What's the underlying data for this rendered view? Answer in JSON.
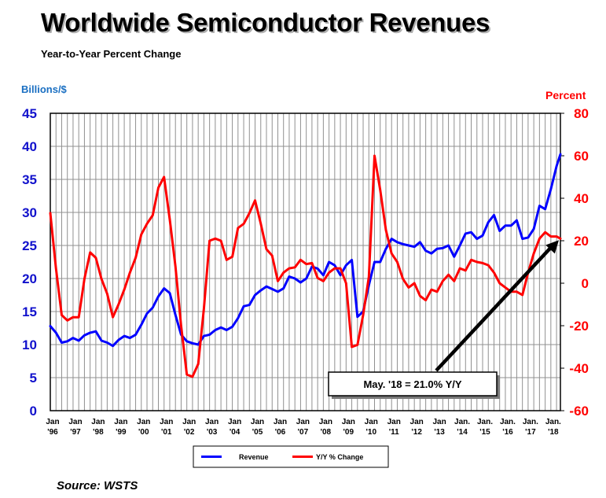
{
  "chart_data": {
    "type": "line",
    "title": "Worldwide Semiconductor Revenues",
    "subtitle": "Year-to-Year Percent Change",
    "ylabel_left": "Billions/$",
    "ylabel_right": "Percent",
    "ylim_left": [
      0,
      45
    ],
    "ylim_right": [
      -60,
      80
    ],
    "yticks_left": [
      "0",
      "5",
      "10",
      "15",
      "20",
      "25",
      "30",
      "35",
      "40",
      "45"
    ],
    "yticks_right": [
      "-60",
      "-40",
      "-20",
      "0",
      "20",
      "40",
      "60",
      "80"
    ],
    "xlim": [
      1996.0,
      2018.42
    ],
    "xticks": [
      {
        "year": 1996,
        "month": "Jan",
        "label": "'96"
      },
      {
        "year": 1997,
        "month": "Jan",
        "label": "'97"
      },
      {
        "year": 1998,
        "month": "Jan",
        "label": "'98"
      },
      {
        "year": 1999,
        "month": "Jan",
        "label": "'99"
      },
      {
        "year": 2000,
        "month": "Jan",
        "label": "'00"
      },
      {
        "year": 2001,
        "month": "Jan",
        "label": "'01"
      },
      {
        "year": 2002,
        "month": "Jan",
        "label": "'02"
      },
      {
        "year": 2003,
        "month": "Jan",
        "label": "'03"
      },
      {
        "year": 2004,
        "month": "Jan",
        "label": "'04"
      },
      {
        "year": 2005,
        "month": "Jan",
        "label": "'05"
      },
      {
        "year": 2006,
        "month": "Jan",
        "label": "'06"
      },
      {
        "year": 2007,
        "month": "Jan",
        "label": "'07"
      },
      {
        "year": 2008,
        "month": "Jan",
        "label": "'08"
      },
      {
        "year": 2009,
        "month": "Jan",
        "label": "'09"
      },
      {
        "year": 2010,
        "month": "Jan",
        "label": "'10"
      },
      {
        "year": 2011,
        "month": "Jan",
        "label": "'11"
      },
      {
        "year": 2012,
        "month": "Jan",
        "label": "'12"
      },
      {
        "year": 2013,
        "month": "Jan",
        "label": "'13"
      },
      {
        "year": 2014,
        "month": "Jan.",
        "label": "'14"
      },
      {
        "year": 2015,
        "month": "Jan.",
        "label": "'15"
      },
      {
        "year": 2016,
        "month": "Jan.",
        "label": "'16"
      },
      {
        "year": 2017,
        "month": "Jan.",
        "label": "'17"
      },
      {
        "year": 2018,
        "month": "Jan.",
        "label": "'18"
      }
    ],
    "grid": true,
    "legend_position": "bottom-center",
    "series": [
      {
        "name": "Revenue",
        "axis": "left",
        "color": "#0000ff",
        "points": [
          [
            1996.0,
            12.8
          ],
          [
            1996.25,
            11.8
          ],
          [
            1996.5,
            10.3
          ],
          [
            1996.75,
            10.5
          ],
          [
            1997.0,
            11.0
          ],
          [
            1997.25,
            10.6
          ],
          [
            1997.5,
            11.4
          ],
          [
            1997.75,
            11.8
          ],
          [
            1998.0,
            12.0
          ],
          [
            1998.25,
            10.6
          ],
          [
            1998.5,
            10.3
          ],
          [
            1998.75,
            9.8
          ],
          [
            1999.0,
            10.7
          ],
          [
            1999.25,
            11.3
          ],
          [
            1999.5,
            11.0
          ],
          [
            1999.75,
            11.5
          ],
          [
            2000.0,
            13.0
          ],
          [
            2000.25,
            14.7
          ],
          [
            2000.5,
            15.6
          ],
          [
            2000.75,
            17.3
          ],
          [
            2001.0,
            18.5
          ],
          [
            2001.25,
            17.8
          ],
          [
            2001.5,
            14.5
          ],
          [
            2001.75,
            11.5
          ],
          [
            2002.0,
            10.5
          ],
          [
            2002.25,
            10.2
          ],
          [
            2002.5,
            10.0
          ],
          [
            2002.75,
            11.3
          ],
          [
            2003.0,
            11.5
          ],
          [
            2003.25,
            12.2
          ],
          [
            2003.5,
            12.6
          ],
          [
            2003.75,
            12.2
          ],
          [
            2004.0,
            12.7
          ],
          [
            2004.25,
            14.0
          ],
          [
            2004.5,
            15.8
          ],
          [
            2004.75,
            16.0
          ],
          [
            2005.0,
            17.5
          ],
          [
            2005.25,
            18.2
          ],
          [
            2005.5,
            18.8
          ],
          [
            2005.75,
            18.4
          ],
          [
            2006.0,
            18.0
          ],
          [
            2006.25,
            18.5
          ],
          [
            2006.5,
            20.3
          ],
          [
            2006.75,
            20.0
          ],
          [
            2007.0,
            19.4
          ],
          [
            2007.25,
            20.0
          ],
          [
            2007.5,
            21.8
          ],
          [
            2007.75,
            21.5
          ],
          [
            2008.0,
            20.5
          ],
          [
            2008.25,
            22.5
          ],
          [
            2008.5,
            22.0
          ],
          [
            2008.75,
            20.5
          ],
          [
            2009.0,
            22.0
          ],
          [
            2009.25,
            22.8
          ],
          [
            2009.5,
            14.2
          ],
          [
            2009.75,
            15.0
          ],
          [
            2010.0,
            19.0
          ],
          [
            2010.25,
            22.5
          ],
          [
            2010.5,
            22.5
          ],
          [
            2010.75,
            24.5
          ],
          [
            2011.0,
            26.0
          ],
          [
            2011.25,
            25.5
          ],
          [
            2011.5,
            25.2
          ],
          [
            2011.75,
            25.0
          ],
          [
            2012.0,
            24.8
          ],
          [
            2012.25,
            25.5
          ],
          [
            2012.5,
            24.2
          ],
          [
            2012.75,
            23.8
          ],
          [
            2013.0,
            24.5
          ],
          [
            2013.25,
            24.6
          ],
          [
            2013.5,
            25.0
          ],
          [
            2013.75,
            23.3
          ],
          [
            2014.0,
            25.0
          ],
          [
            2014.25,
            26.8
          ],
          [
            2014.5,
            27.0
          ],
          [
            2014.75,
            26.0
          ],
          [
            2015.0,
            26.5
          ],
          [
            2015.25,
            28.5
          ],
          [
            2015.5,
            29.6
          ],
          [
            2015.75,
            27.2
          ],
          [
            2016.0,
            28.0
          ],
          [
            2016.25,
            28.0
          ],
          [
            2016.5,
            28.8
          ],
          [
            2016.75,
            26.0
          ],
          [
            2017.0,
            26.2
          ],
          [
            2017.25,
            27.5
          ],
          [
            2017.5,
            31.0
          ],
          [
            2017.75,
            30.5
          ],
          [
            2018.0,
            33.5
          ],
          [
            2018.25,
            37.0
          ],
          [
            2018.42,
            38.8
          ]
        ]
      },
      {
        "name": "Y/Y % Change",
        "axis": "right",
        "color": "#ff0000",
        "points": [
          [
            1996.0,
            33.0
          ],
          [
            1996.25,
            7.0
          ],
          [
            1996.5,
            -15.0
          ],
          [
            1996.75,
            -17.5
          ],
          [
            1997.0,
            -16.0
          ],
          [
            1997.25,
            -16.0
          ],
          [
            1997.5,
            2.0
          ],
          [
            1997.75,
            14.5
          ],
          [
            1998.0,
            12.0
          ],
          [
            1998.25,
            2.0
          ],
          [
            1998.5,
            -5.0
          ],
          [
            1998.75,
            -16.0
          ],
          [
            1999.0,
            -10.0
          ],
          [
            1999.25,
            -3.0
          ],
          [
            1999.5,
            5.0
          ],
          [
            1999.75,
            12.0
          ],
          [
            2000.0,
            23.0
          ],
          [
            2000.25,
            28.0
          ],
          [
            2000.5,
            32.0
          ],
          [
            2000.75,
            45.0
          ],
          [
            2001.0,
            50.0
          ],
          [
            2001.25,
            30.0
          ],
          [
            2001.5,
            8.0
          ],
          [
            2001.75,
            -20.0
          ],
          [
            2002.0,
            -43.0
          ],
          [
            2002.25,
            -44.0
          ],
          [
            2002.5,
            -38.0
          ],
          [
            2002.75,
            -12.0
          ],
          [
            2003.0,
            20.0
          ],
          [
            2003.25,
            21.0
          ],
          [
            2003.5,
            20.0
          ],
          [
            2003.75,
            11.0
          ],
          [
            2004.0,
            12.5
          ],
          [
            2004.25,
            26.0
          ],
          [
            2004.5,
            28.0
          ],
          [
            2004.75,
            33.0
          ],
          [
            2005.0,
            39.0
          ],
          [
            2005.25,
            28.0
          ],
          [
            2005.5,
            16.0
          ],
          [
            2005.75,
            13.0
          ],
          [
            2006.0,
            1.0
          ],
          [
            2006.25,
            5.0
          ],
          [
            2006.5,
            7.0
          ],
          [
            2006.75,
            7.5
          ],
          [
            2007.0,
            11.0
          ],
          [
            2007.25,
            9.0
          ],
          [
            2007.5,
            9.5
          ],
          [
            2007.75,
            2.5
          ],
          [
            2008.0,
            1.0
          ],
          [
            2008.25,
            5.0
          ],
          [
            2008.5,
            7.0
          ],
          [
            2008.75,
            7.0
          ],
          [
            2009.0,
            0.0
          ],
          [
            2009.25,
            -30.0
          ],
          [
            2009.5,
            -29.0
          ],
          [
            2009.75,
            -15.0
          ],
          [
            2010.0,
            3.0
          ],
          [
            2010.25,
            60.0
          ],
          [
            2010.5,
            44.0
          ],
          [
            2010.75,
            25.0
          ],
          [
            2011.0,
            14.0
          ],
          [
            2011.25,
            10.0
          ],
          [
            2011.5,
            2.0
          ],
          [
            2011.75,
            -2.0
          ],
          [
            2012.0,
            0.0
          ],
          [
            2012.25,
            -6.0
          ],
          [
            2012.5,
            -8.0
          ],
          [
            2012.75,
            -3.0
          ],
          [
            2013.0,
            -4.0
          ],
          [
            2013.25,
            1.0
          ],
          [
            2013.5,
            4.0
          ],
          [
            2013.75,
            1.0
          ],
          [
            2014.0,
            7.0
          ],
          [
            2014.25,
            6.0
          ],
          [
            2014.5,
            11.0
          ],
          [
            2014.75,
            10.0
          ],
          [
            2015.0,
            9.5
          ],
          [
            2015.25,
            8.5
          ],
          [
            2015.5,
            5.0
          ],
          [
            2015.75,
            0.0
          ],
          [
            2016.0,
            -2.0
          ],
          [
            2016.25,
            -4.0
          ],
          [
            2016.5,
            -4.0
          ],
          [
            2016.75,
            -5.5
          ],
          [
            2017.0,
            5.0
          ],
          [
            2017.25,
            14.0
          ],
          [
            2017.5,
            21.0
          ],
          [
            2017.75,
            24.0
          ],
          [
            2018.0,
            22.0
          ],
          [
            2018.25,
            22.0
          ],
          [
            2018.42,
            21.0
          ]
        ]
      }
    ],
    "annotation": {
      "text": "May. '18 = 21.0% Y/Y",
      "x": 2018.42,
      "y_percent": 21.0
    },
    "source": "Source: WSTS"
  }
}
